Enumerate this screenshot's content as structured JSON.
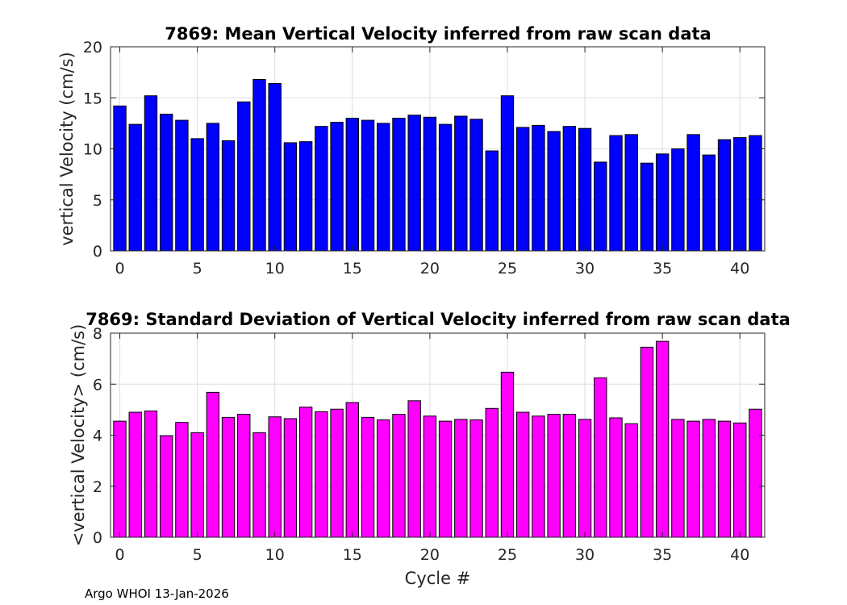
{
  "chart_data": [
    {
      "type": "bar",
      "title": "7869: Mean Vertical Velocity inferred from raw scan data",
      "xlabel": "",
      "ylabel": "vertical Velocity (cm/s)",
      "color": "#0000ff",
      "xlim": [
        -0.6,
        41.6
      ],
      "ylim": [
        0,
        20
      ],
      "xticks": [
        0,
        5,
        10,
        15,
        20,
        25,
        30,
        35,
        40
      ],
      "yticks": [
        0,
        5,
        10,
        15,
        20
      ],
      "grid": true,
      "x": [
        0,
        1,
        2,
        3,
        4,
        5,
        6,
        7,
        8,
        9,
        10,
        11,
        12,
        13,
        14,
        15,
        16,
        17,
        18,
        19,
        20,
        21,
        22,
        23,
        24,
        25,
        26,
        27,
        28,
        29,
        30,
        31,
        32,
        33,
        34,
        35,
        36,
        37,
        38,
        39,
        40,
        41
      ],
      "values": [
        14.2,
        12.4,
        15.2,
        13.4,
        12.8,
        11.0,
        12.5,
        10.8,
        14.6,
        16.8,
        16.4,
        10.6,
        10.7,
        12.2,
        12.6,
        13.0,
        12.8,
        12.5,
        13.0,
        13.3,
        13.1,
        12.4,
        13.2,
        12.9,
        9.8,
        15.2,
        12.1,
        12.3,
        11.7,
        12.2,
        12.0,
        8.7,
        11.3,
        11.4,
        8.6,
        9.5,
        10.0,
        11.4,
        9.4,
        10.9,
        11.1,
        11.3
      ]
    },
    {
      "type": "bar",
      "title": "7869: Standard Deviation of Vertical Velocity inferred from raw scan data",
      "xlabel": "Cycle #",
      "ylabel": "<vertical Velocity> (cm/s)",
      "color": "#ff00ff",
      "xlim": [
        -0.6,
        41.6
      ],
      "ylim": [
        0,
        8
      ],
      "xticks": [
        0,
        5,
        10,
        15,
        20,
        25,
        30,
        35,
        40
      ],
      "yticks": [
        0,
        2,
        4,
        6,
        8
      ],
      "grid": true,
      "x": [
        0,
        1,
        2,
        3,
        4,
        5,
        6,
        7,
        8,
        9,
        10,
        11,
        12,
        13,
        14,
        15,
        16,
        17,
        18,
        19,
        20,
        21,
        22,
        23,
        24,
        25,
        26,
        27,
        28,
        29,
        30,
        31,
        32,
        33,
        34,
        35,
        36,
        37,
        38,
        39,
        40,
        41
      ],
      "values": [
        4.55,
        4.9,
        4.95,
        3.98,
        4.5,
        4.1,
        5.68,
        4.7,
        4.82,
        4.1,
        4.72,
        4.65,
        5.1,
        4.92,
        5.02,
        5.28,
        4.7,
        4.6,
        4.82,
        5.35,
        4.75,
        4.55,
        4.62,
        4.6,
        5.05,
        6.47,
        4.9,
        4.75,
        4.82,
        4.82,
        4.62,
        6.25,
        4.68,
        4.45,
        7.45,
        7.68,
        4.62,
        4.55,
        4.62,
        4.55,
        4.48,
        5.02
      ]
    }
  ],
  "footer": "Argo WHOI 13-Jan-2026"
}
